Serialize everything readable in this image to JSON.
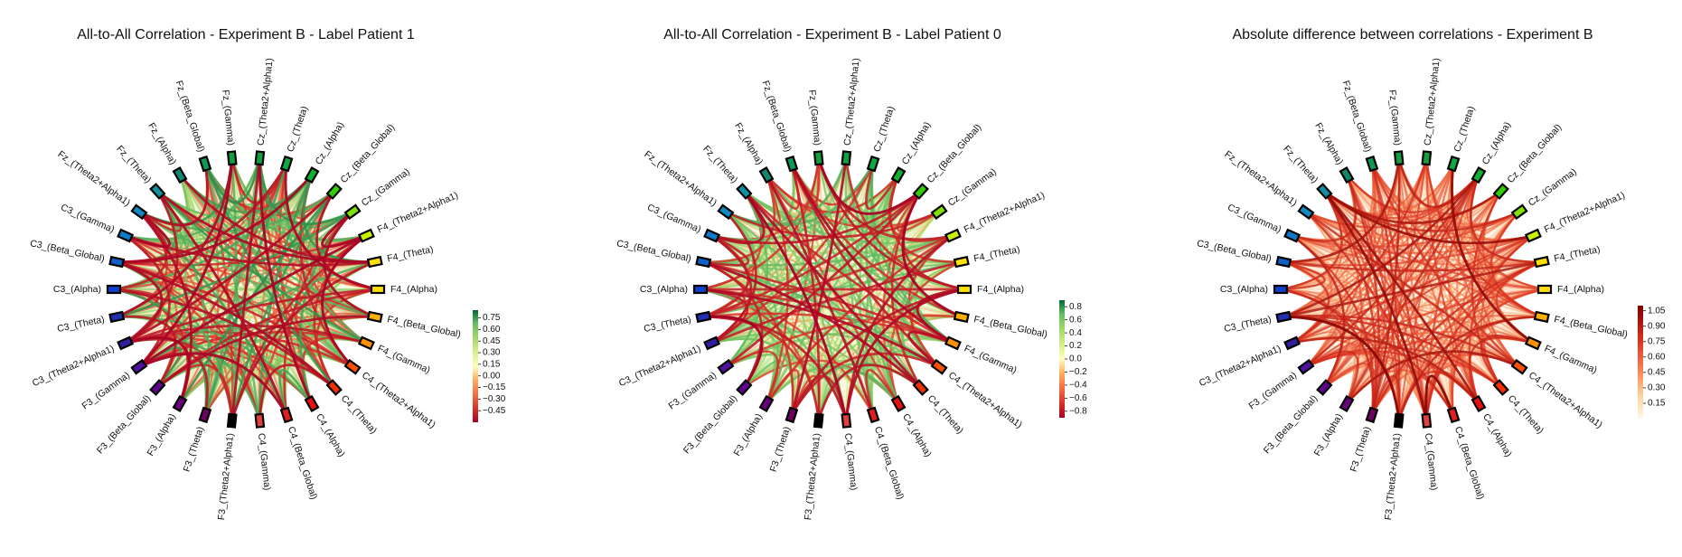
{
  "figure": {
    "titles": [
      "All-to-All Correlation - Experiment B - Label Patient 1",
      "All-to-All Correlation - Experiment B - Label Patient 0",
      "Absolute difference between correlations - Experiment B"
    ]
  },
  "chart_data": [
    {
      "type": "chord-network",
      "title": "All-to-All Correlation - Experiment B - Label Patient 1",
      "nodes": [
        "F4_(Alpha)",
        "F4_(Theta)",
        "F4_(Theta2+Alpha1)",
        "Cz_(Gamma)",
        "Cz_(Beta_Global)",
        "Cz_(Alpha)",
        "Cz_(Theta)",
        "Cz_(Theta2+Alpha1)",
        "Fz_(Gamma)",
        "Fz_(Beta_Global)",
        "Fz_(Alpha)",
        "Fz_(Theta)",
        "Fz_(Theta2+Alpha1)",
        "C3_(Gamma)",
        "C3_(Beta_Global)",
        "C3_(Alpha)",
        "C3_(Theta)",
        "C3_(Theta2+Alpha1)",
        "F3_(Gamma)",
        "F3_(Beta_Global)",
        "F3_(Alpha)",
        "F3_(Theta)",
        "F3_(Theta2+Alpha1)",
        "C4_(Gamma)",
        "C4_(Beta_Global)",
        "C4_(Alpha)",
        "C4_(Theta)",
        "C4_(Theta2+Alpha1)",
        "F4_(Gamma)",
        "F4_(Beta_Global)"
      ],
      "node_colors": [
        "#ffe000",
        "#ffe000",
        "#c8f000",
        "#80e000",
        "#30d000",
        "#10b030",
        "#10a840",
        "#10a040",
        "#10a040",
        "#109858",
        "#108870",
        "#1090a0",
        "#1088c0",
        "#1078c8",
        "#1060c8",
        "#1040c8",
        "#2030b0",
        "#3020a0",
        "#5010a0",
        "#600090",
        "#6a0080",
        "#700060",
        "#000000",
        "#e04040",
        "#e02020",
        "#e81010",
        "#f03000",
        "#ff5000",
        "#ff9000",
        "#ffb000"
      ],
      "colorbar": {
        "colormap": "RdYlGn",
        "min": -0.6,
        "max": 0.85,
        "ticks": [
          "0.75",
          "0.60",
          "0.45",
          "0.30",
          "0.15",
          "0.00",
          "−0.15",
          "−0.30",
          "−0.45"
        ]
      }
    },
    {
      "type": "chord-network",
      "title": "All-to-All Correlation - Experiment B - Label Patient 0",
      "nodes": [
        "F4_(Alpha)",
        "F4_(Theta)",
        "F4_(Theta2+Alpha1)",
        "Cz_(Gamma)",
        "Cz_(Beta_Global)",
        "Cz_(Alpha)",
        "Cz_(Theta)",
        "Cz_(Theta2+Alpha1)",
        "Fz_(Gamma)",
        "Fz_(Beta_Global)",
        "Fz_(Alpha)",
        "Fz_(Theta)",
        "Fz_(Theta2+Alpha1)",
        "C3_(Gamma)",
        "C3_(Beta_Global)",
        "C3_(Alpha)",
        "C3_(Theta)",
        "C3_(Theta2+Alpha1)",
        "F3_(Gamma)",
        "F3_(Beta_Global)",
        "F3_(Alpha)",
        "F3_(Theta)",
        "F3_(Theta2+Alpha1)",
        "C4_(Gamma)",
        "C4_(Beta_Global)",
        "C4_(Alpha)",
        "C4_(Theta)",
        "C4_(Theta2+Alpha1)",
        "F4_(Gamma)",
        "F4_(Beta_Global)"
      ],
      "node_colors": [
        "#ffe000",
        "#ffe000",
        "#c8f000",
        "#80e000",
        "#30d000",
        "#10b030",
        "#10a840",
        "#10a040",
        "#10a040",
        "#109858",
        "#108870",
        "#1090a0",
        "#1088c0",
        "#1078c8",
        "#1060c8",
        "#1040c8",
        "#2030b0",
        "#3020a0",
        "#5010a0",
        "#600090",
        "#6a0080",
        "#700060",
        "#000000",
        "#e04040",
        "#e02020",
        "#e81010",
        "#f03000",
        "#ff5000",
        "#ff9000",
        "#ffb000"
      ],
      "colorbar": {
        "colormap": "RdYlGn",
        "min": -0.9,
        "max": 0.9,
        "ticks": [
          "0.8",
          "0.6",
          "0.4",
          "0.2",
          "0.0",
          "−0.2",
          "−0.4",
          "−0.6",
          "−0.8"
        ]
      }
    },
    {
      "type": "chord-network",
      "title": "Absolute difference between correlations - Experiment B",
      "nodes": [
        "F4_(Alpha)",
        "F4_(Theta)",
        "F4_(Theta2+Alpha1)",
        "Cz_(Gamma)",
        "Cz_(Beta_Global)",
        "Cz_(Alpha)",
        "Cz_(Theta)",
        "Cz_(Theta2+Alpha1)",
        "Fz_(Gamma)",
        "Fz_(Beta_Global)",
        "Fz_(Alpha)",
        "Fz_(Theta)",
        "Fz_(Theta2+Alpha1)",
        "C3_(Gamma)",
        "C3_(Beta_Global)",
        "C3_(Alpha)",
        "C3_(Theta)",
        "C3_(Theta2+Alpha1)",
        "F3_(Gamma)",
        "F3_(Beta_Global)",
        "F3_(Alpha)",
        "F3_(Theta)",
        "F3_(Theta2+Alpha1)",
        "C4_(Gamma)",
        "C4_(Beta_Global)",
        "C4_(Alpha)",
        "C4_(Theta)",
        "C4_(Theta2+Alpha1)",
        "F4_(Gamma)",
        "F4_(Beta_Global)"
      ],
      "node_colors": [
        "#ffe000",
        "#ffe000",
        "#c8f000",
        "#80e000",
        "#30d000",
        "#10b030",
        "#10a840",
        "#10a040",
        "#10a040",
        "#109858",
        "#108870",
        "#1090a0",
        "#1088c0",
        "#1078c8",
        "#1060c8",
        "#1040c8",
        "#2030b0",
        "#3020a0",
        "#5010a0",
        "#600090",
        "#6a0080",
        "#700060",
        "#000000",
        "#e04040",
        "#e02020",
        "#e81010",
        "#f03000",
        "#ff5000",
        "#ff9000",
        "#ffb000"
      ],
      "colorbar": {
        "colormap": "OrRd",
        "min": 0.0,
        "max": 1.1,
        "ticks": [
          "1.05",
          "0.90",
          "0.75",
          "0.60",
          "0.45",
          "0.30",
          "0.15"
        ]
      }
    }
  ]
}
